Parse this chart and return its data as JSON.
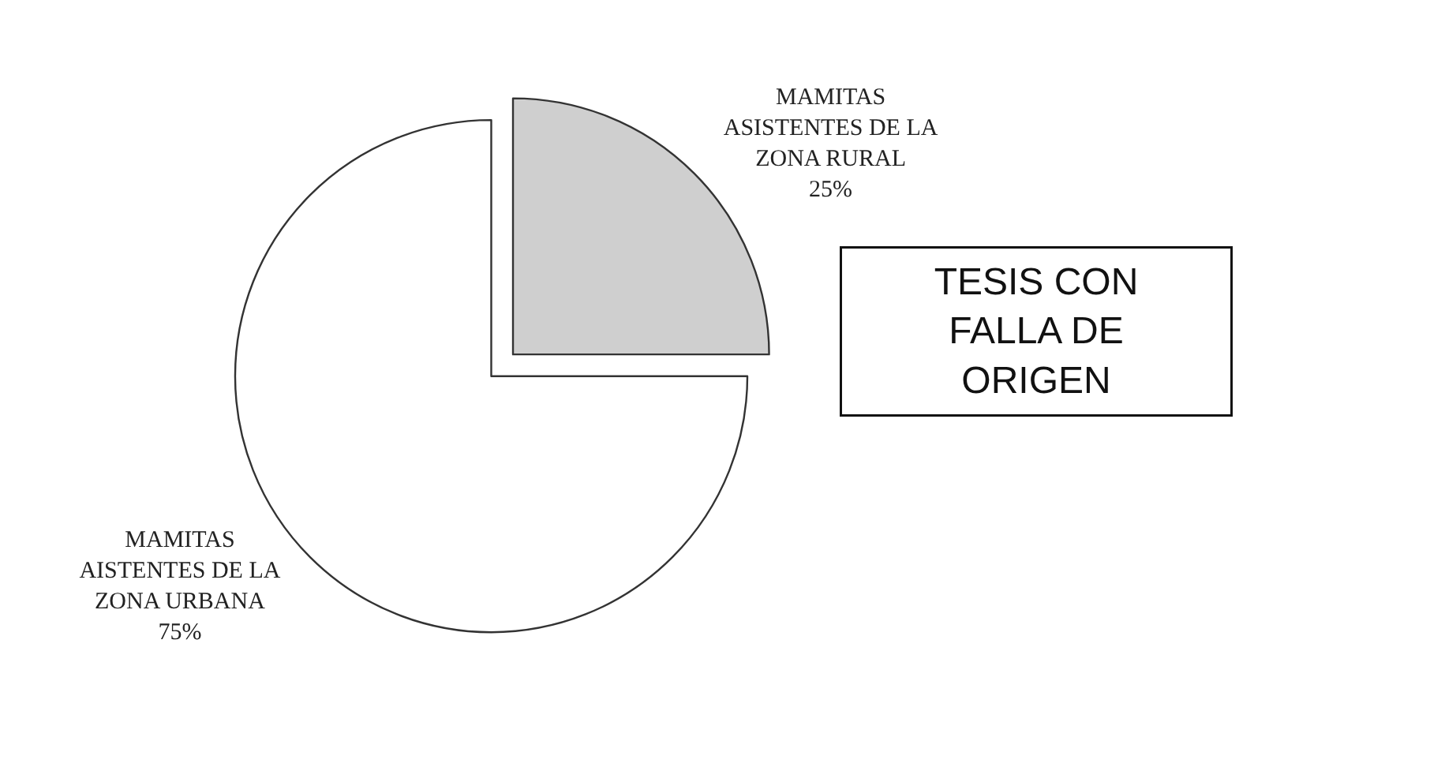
{
  "chart_data": {
    "type": "pie",
    "categories": [
      "MAMITAS ASISTENTES DE LA ZONA RURAL",
      "MAMITAS AISTENTES DE LA ZONA URBANA"
    ],
    "values": [
      25,
      75
    ],
    "value_labels": [
      "25%",
      "75%"
    ],
    "colors": [
      "#cfcfcf",
      "#ffffff"
    ],
    "legend": false,
    "annotations": [
      "TESIS CON FALLA DE ORIGEN"
    ]
  }
}
